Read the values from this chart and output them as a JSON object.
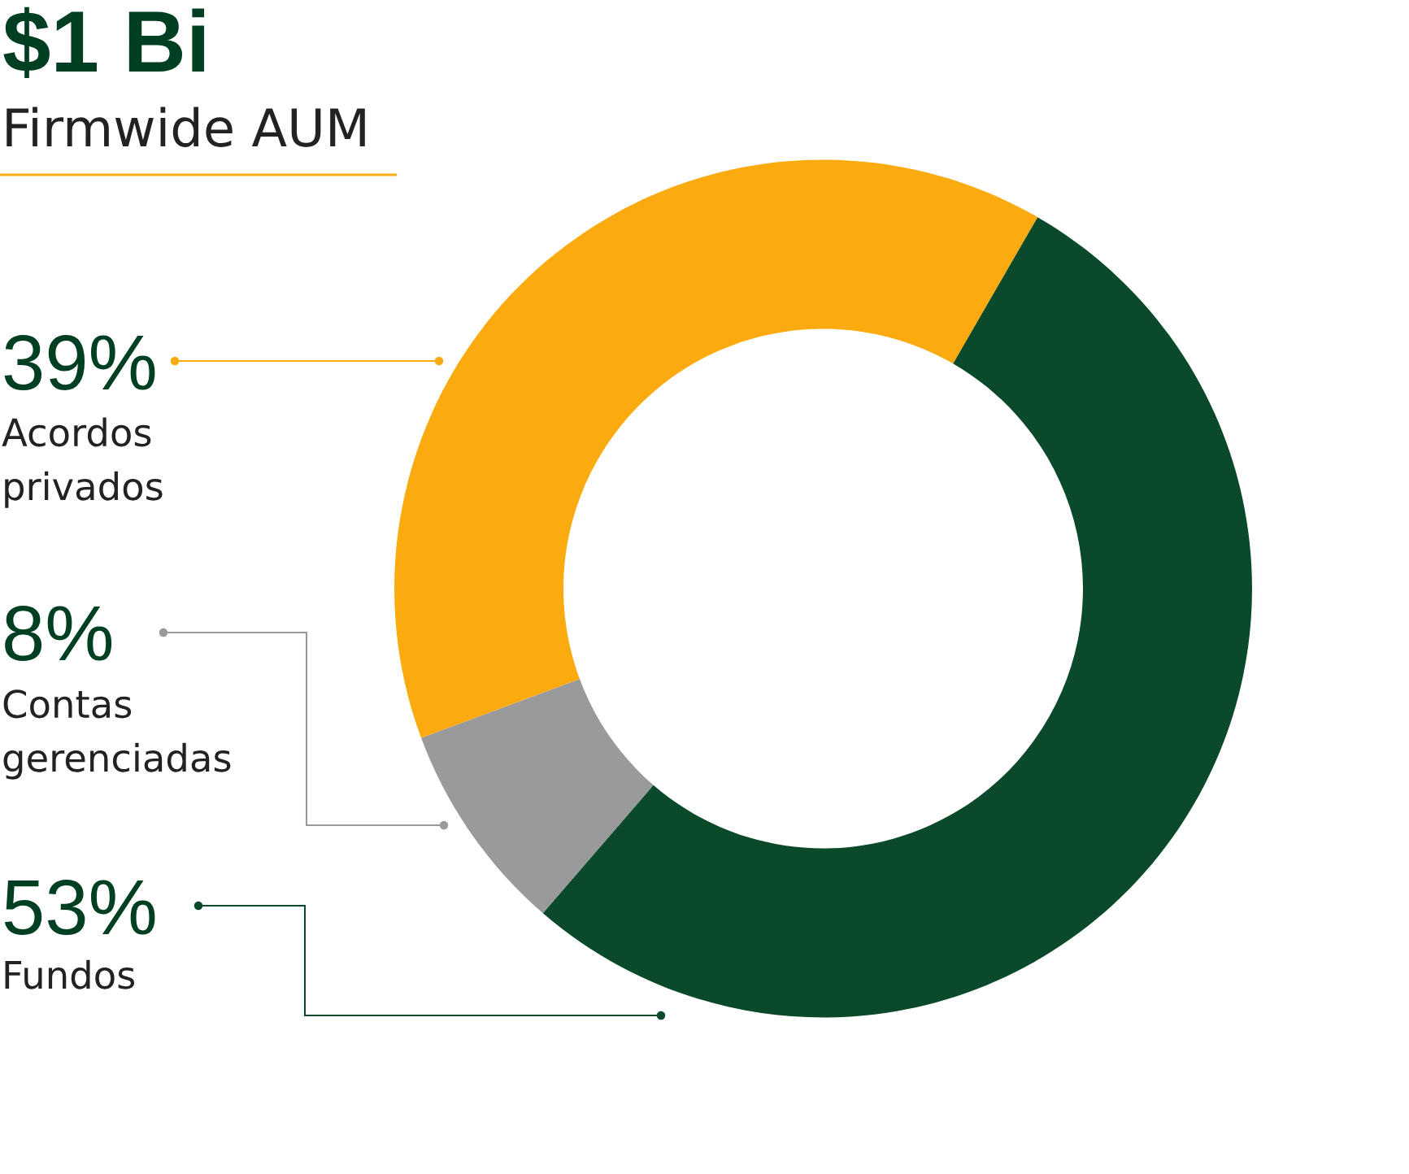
{
  "chart_data": {
    "type": "donut",
    "title": "$1 Bi",
    "subtitle": "Firmwide AUM",
    "categories": [
      "Acordos privados",
      "Contas gerenciadas",
      "Fundos"
    ],
    "values": [
      39,
      8,
      53
    ],
    "colors": [
      "#fbab10",
      "#9a9a9c",
      "#0a4a2a"
    ],
    "value_labels": [
      "39%",
      "8%",
      "53%"
    ]
  }
}
